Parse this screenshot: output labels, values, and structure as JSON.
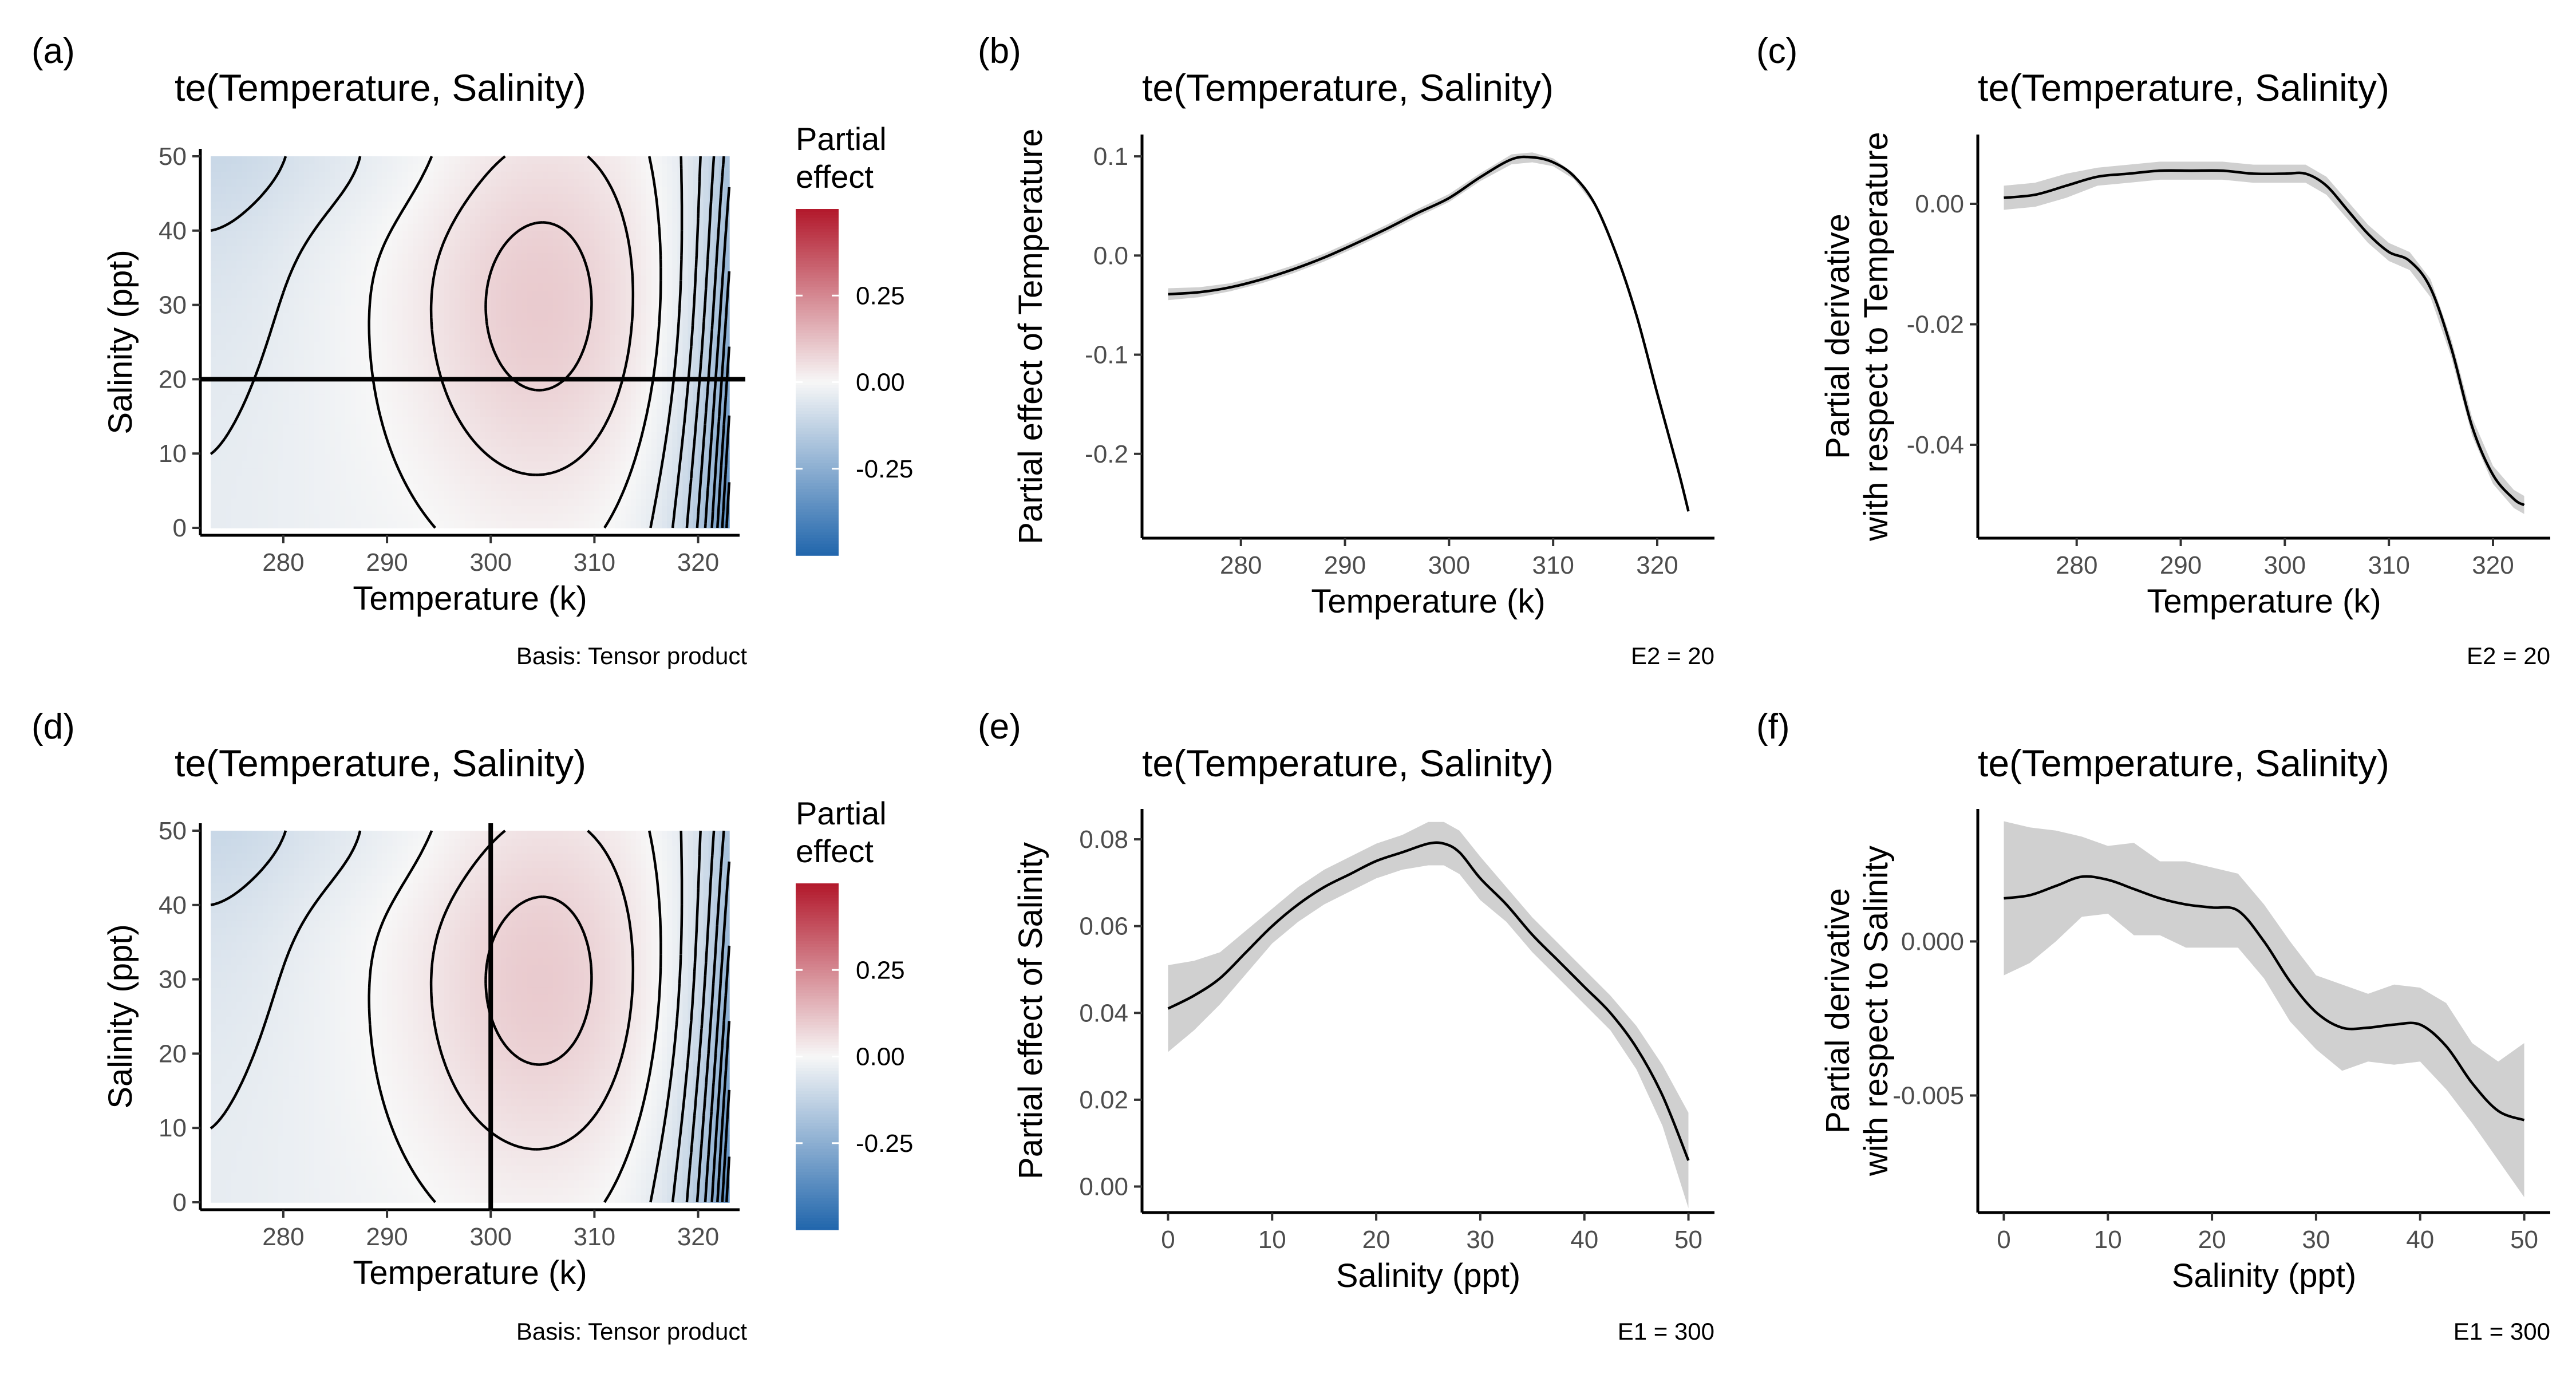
{
  "chart_data": [
    {
      "panel": "(a)",
      "type": "heatmap",
      "title": "te(Temperature, Salinity)",
      "xlabel": "Temperature (k)",
      "ylabel": "Salinity (ppt)",
      "xlim": [
        272,
        324
      ],
      "ylim": [
        -1,
        51
      ],
      "xticks": [
        280,
        290,
        300,
        310,
        320
      ],
      "yticks": [
        0,
        10,
        20,
        30,
        40,
        50
      ],
      "legend_title": [
        "Partial",
        "effect"
      ],
      "legend_ticks": [
        0.25,
        0.0,
        -0.25
      ],
      "legend_tick_labels": [
        "0.25",
        "0.00",
        "-0.25"
      ],
      "legend_range": [
        -0.5,
        0.5
      ],
      "colors": {
        "low": "#2166ac",
        "mid": "#f7f7f7",
        "high": "#b2182b"
      },
      "reference_line": {
        "orientation": "horizontal",
        "value": 20
      },
      "caption": "Basis: Tensor product"
    },
    {
      "panel": "(b)",
      "type": "line",
      "title": "te(Temperature, Salinity)",
      "xlabel": "Temperature (k)",
      "ylabel": "Partial effect of Temperature",
      "xlim": [
        270.5,
        325.5
      ],
      "ylim": [
        -0.285,
        0.122
      ],
      "xticks": [
        280,
        290,
        300,
        310,
        320
      ],
      "yticks": [
        -0.2,
        -0.1,
        0.0,
        0.1
      ],
      "ytick_labels": [
        "-0.2",
        "-0.1",
        "0.0",
        "0.1"
      ],
      "x": [
        273,
        276,
        279,
        282,
        285,
        288,
        291,
        294,
        297,
        300,
        303,
        306,
        308,
        310,
        312,
        314,
        316,
        318,
        320,
        322,
        323
      ],
      "y": [
        -0.039,
        -0.037,
        -0.032,
        -0.024,
        -0.014,
        -0.002,
        0.012,
        0.027,
        0.043,
        0.058,
        0.079,
        0.097,
        0.099,
        0.094,
        0.08,
        0.052,
        0.003,
        -0.06,
        -0.139,
        -0.216,
        -0.258
      ],
      "band_halfwidth": [
        0.006,
        0.005,
        0.004,
        0.004,
        0.004,
        0.004,
        0.004,
        0.004,
        0.004,
        0.004,
        0.004,
        0.005,
        0.005,
        0.004,
        0.003,
        0.002,
        0.001,
        0.001,
        0.001,
        0.001,
        0.001
      ],
      "caption": "E2 = 20"
    },
    {
      "panel": "(c)",
      "type": "line",
      "title": "te(Temperature, Salinity)",
      "xlabel": "Temperature (k)",
      "ylabel": [
        "Partial derivative",
        "with respect to Temperature"
      ],
      "xlim": [
        270.5,
        325.5
      ],
      "ylim": [
        -0.0555,
        0.0115
      ],
      "xticks": [
        280,
        290,
        300,
        310,
        320
      ],
      "yticks": [
        0.0,
        -0.02,
        -0.04
      ],
      "ytick_labels": [
        "0.00",
        "-0.02",
        "-0.04"
      ],
      "x": [
        273,
        276,
        279,
        282,
        285,
        288,
        291,
        294,
        297,
        300,
        302,
        304,
        306,
        308,
        310,
        312,
        314,
        316,
        318,
        320,
        322,
        323
      ],
      "y": [
        0.001,
        0.0015,
        0.003,
        0.0045,
        0.005,
        0.0055,
        0.0055,
        0.0055,
        0.005,
        0.005,
        0.005,
        0.003,
        -0.001,
        -0.005,
        -0.008,
        -0.0095,
        -0.014,
        -0.024,
        -0.037,
        -0.045,
        -0.049,
        -0.05
      ],
      "band_halfwidth": [
        0.002,
        0.002,
        0.002,
        0.0015,
        0.0015,
        0.0015,
        0.0015,
        0.0015,
        0.0015,
        0.0015,
        0.0015,
        0.0015,
        0.0015,
        0.0015,
        0.0015,
        0.0015,
        0.0015,
        0.0015,
        0.0015,
        0.0015,
        0.0015,
        0.0015
      ],
      "caption": "E2 = 20"
    },
    {
      "panel": "(d)",
      "type": "heatmap",
      "title": "te(Temperature, Salinity)",
      "xlabel": "Temperature (k)",
      "ylabel": "Salinity (ppt)",
      "xlim": [
        272,
        324
      ],
      "ylim": [
        -1,
        51
      ],
      "xticks": [
        280,
        290,
        300,
        310,
        320
      ],
      "yticks": [
        0,
        10,
        20,
        30,
        40,
        50
      ],
      "legend_title": [
        "Partial",
        "effect"
      ],
      "legend_ticks": [
        0.25,
        0.0,
        -0.25
      ],
      "legend_tick_labels": [
        "0.25",
        "0.00",
        "-0.25"
      ],
      "legend_range": [
        -0.5,
        0.5
      ],
      "colors": {
        "low": "#2166ac",
        "mid": "#f7f7f7",
        "high": "#b2182b"
      },
      "reference_line": {
        "orientation": "vertical",
        "value": 300
      },
      "caption": "Basis: Tensor product"
    },
    {
      "panel": "(e)",
      "type": "line",
      "title": "te(Temperature, Salinity)",
      "xlabel": "Salinity (ppt)",
      "ylabel": "Partial effect of Salinity",
      "xlim": [
        -2.5,
        52.5
      ],
      "ylim": [
        -0.006,
        0.087
      ],
      "xticks": [
        0,
        10,
        20,
        30,
        40,
        50
      ],
      "yticks": [
        0.0,
        0.02,
        0.04,
        0.06,
        0.08
      ],
      "ytick_labels": [
        "0.00",
        "0.02",
        "0.04",
        "0.06",
        "0.08"
      ],
      "x": [
        0,
        2.5,
        5,
        7.5,
        10,
        12.5,
        15,
        17.5,
        20,
        22.5,
        25,
        26.5,
        28,
        30,
        32.5,
        35,
        37.5,
        40,
        42.5,
        45,
        47.5,
        50
      ],
      "y": [
        0.041,
        0.044,
        0.048,
        0.054,
        0.06,
        0.065,
        0.069,
        0.072,
        0.075,
        0.077,
        0.079,
        0.079,
        0.077,
        0.071,
        0.065,
        0.058,
        0.052,
        0.046,
        0.04,
        0.032,
        0.021,
        0.006
      ],
      "band_halfwidth": [
        0.01,
        0.008,
        0.006,
        0.005,
        0.004,
        0.004,
        0.004,
        0.004,
        0.004,
        0.004,
        0.005,
        0.005,
        0.005,
        0.005,
        0.004,
        0.004,
        0.004,
        0.004,
        0.004,
        0.005,
        0.007,
        0.011
      ],
      "caption": "E1 = 300"
    },
    {
      "panel": "(f)",
      "type": "line",
      "title": "te(Temperature, Salinity)",
      "xlabel": "Salinity (ppt)",
      "ylabel": [
        "Partial derivative",
        "with respect to Salinity"
      ],
      "xlim": [
        -2.5,
        52.5
      ],
      "ylim": [
        -0.0088,
        0.0043
      ],
      "xticks": [
        0,
        10,
        20,
        30,
        40,
        50
      ],
      "yticks": [
        0.0,
        -0.005
      ],
      "ytick_labels": [
        "0.000",
        "-0.005"
      ],
      "x": [
        0,
        2.5,
        5,
        7.5,
        10,
        12.5,
        15,
        17.5,
        20,
        22.5,
        25,
        27.5,
        30,
        32.5,
        35,
        37.5,
        40,
        42.5,
        45,
        47.5,
        50
      ],
      "y": [
        0.0014,
        0.0015,
        0.0018,
        0.0021,
        0.002,
        0.0017,
        0.0014,
        0.0012,
        0.0011,
        0.001,
        0.0,
        -0.0013,
        -0.0023,
        -0.0028,
        -0.0028,
        -0.0027,
        -0.0027,
        -0.0034,
        -0.0046,
        -0.0055,
        -0.0058
      ],
      "band_halfwidth": [
        0.0025,
        0.0022,
        0.0018,
        0.0013,
        0.0011,
        0.0015,
        0.0012,
        0.0014,
        0.0013,
        0.0012,
        0.0012,
        0.0013,
        0.0012,
        0.0014,
        0.0011,
        0.0013,
        0.0012,
        0.0014,
        0.0013,
        0.0016,
        0.0025
      ],
      "caption": "E1 = 300"
    }
  ]
}
